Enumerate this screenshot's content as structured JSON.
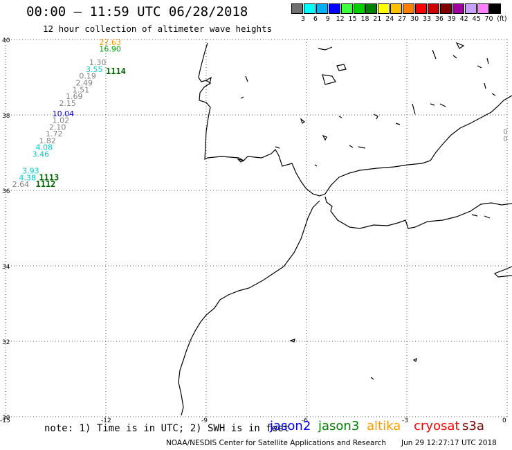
{
  "header": {
    "title": "00:00 – 11:59 UTC 06/28/2018",
    "subtitle": "12 hour collection of altimeter wave heights"
  },
  "legend": {
    "unit": "(ft)",
    "bins": [
      {
        "label": "3",
        "color": "#707070"
      },
      {
        "label": "6",
        "color": "#00ffff"
      },
      {
        "label": "9",
        "color": "#00b0f0"
      },
      {
        "label": "12",
        "color": "#0000ff"
      },
      {
        "label": "15",
        "color": "#40ff40"
      },
      {
        "label": "18",
        "color": "#00d000"
      },
      {
        "label": "21",
        "color": "#008000"
      },
      {
        "label": "24",
        "color": "#ffff00"
      },
      {
        "label": "27",
        "color": "#ffc000"
      },
      {
        "label": "30",
        "color": "#ff8000"
      },
      {
        "label": "33",
        "color": "#ff0000"
      },
      {
        "label": "36",
        "color": "#d00000"
      },
      {
        "label": "39",
        "color": "#800000"
      },
      {
        "label": "42",
        "color": "#a000a0"
      },
      {
        "label": "45",
        "color": "#c8a0ff"
      },
      {
        "label": "70",
        "color": "#ff80ff"
      },
      {
        "label": "",
        "color": "#000000"
      }
    ]
  },
  "map": {
    "lon_range": [
      -15,
      0
    ],
    "lat_range": [
      30,
      40
    ],
    "lon_ticks": [
      "-15",
      "-12",
      "-9",
      "-6",
      "-3",
      "0"
    ],
    "lat_ticks": [
      "40",
      "38",
      "36",
      "34",
      "32",
      "30"
    ],
    "tick_lon_values": [
      -15,
      -12,
      -9,
      -6,
      -3,
      0
    ],
    "tick_lat_values": [
      40,
      38,
      36,
      34,
      32,
      30
    ],
    "observations": [
      {
        "text": "27.63",
        "color": "#ff9900",
        "lon": -12.2,
        "lat": 39.85
      },
      {
        "text": "16.90",
        "color": "#00a000",
        "lon": -12.2,
        "lat": 39.68
      },
      {
        "text": "1.30",
        "color": "#808080",
        "lon": -12.5,
        "lat": 39.32
      },
      {
        "text": "3.55",
        "color": "#00cccc",
        "lon": -12.6,
        "lat": 39.14
      },
      {
        "text": "0.19",
        "color": "#808080",
        "lon": -12.8,
        "lat": 38.96
      },
      {
        "text": "2.49",
        "color": "#808080",
        "lon": -12.9,
        "lat": 38.78
      },
      {
        "text": "1.51",
        "color": "#808080",
        "lon": -13.0,
        "lat": 38.6
      },
      {
        "text": "1.69",
        "color": "#808080",
        "lon": -13.2,
        "lat": 38.42
      },
      {
        "text": "2.15",
        "color": "#808080",
        "lon": -13.4,
        "lat": 38.24
      },
      {
        "text": "10.04",
        "color": "#0000cc",
        "lon": -13.6,
        "lat": 37.96
      },
      {
        "text": "1.02",
        "color": "#808080",
        "lon": -13.6,
        "lat": 37.79
      },
      {
        "text": "2.10",
        "color": "#808080",
        "lon": -13.7,
        "lat": 37.61
      },
      {
        "text": "1.72",
        "color": "#808080",
        "lon": -13.8,
        "lat": 37.43
      },
      {
        "text": "1.82",
        "color": "#808080",
        "lon": -14.0,
        "lat": 37.25
      },
      {
        "text": "4.08",
        "color": "#00cccc",
        "lon": -14.1,
        "lat": 37.07
      },
      {
        "text": "3.46",
        "color": "#00cccc",
        "lon": -14.2,
        "lat": 36.89
      },
      {
        "text": "3.93",
        "color": "#00cccc",
        "lon": -14.5,
        "lat": 36.45
      },
      {
        "text": "4.38",
        "color": "#00cccc",
        "lon": -14.6,
        "lat": 36.27
      },
      {
        "text": "2.64",
        "color": "#808080",
        "lon": -14.8,
        "lat": 36.09
      }
    ],
    "pass_labels": [
      {
        "text": "1114",
        "color": "#006400",
        "lon": -12.0,
        "lat": 39.08
      },
      {
        "text": "1113",
        "color": "#006400",
        "lon": -14.0,
        "lat": 36.27
      },
      {
        "text": "1112",
        "color": "#006400",
        "lon": -14.1,
        "lat": 36.09
      }
    ],
    "edge_labels": [
      {
        "text": "0",
        "lon": -0.12,
        "lat": 37.5
      },
      {
        "text": "0",
        "lon": -0.12,
        "lat": 37.3
      }
    ]
  },
  "note": "note: 1) Time is in UTC; 2) SWH is in feet",
  "satellites": [
    {
      "name": "jason2",
      "color": "#0000ff"
    },
    {
      "name": "jason3",
      "color": "#008000"
    },
    {
      "name": "altika",
      "color": "#ff9900"
    },
    {
      "name": "cryosat",
      "color": "#ff0000"
    },
    {
      "name": "s3a",
      "color": "#800000"
    }
  ],
  "footer": {
    "credit": "NOAA/NESDIS Center for Satellite Applications and Research",
    "timestamp": "Jun 29 12:27:17 UTC 2018"
  }
}
